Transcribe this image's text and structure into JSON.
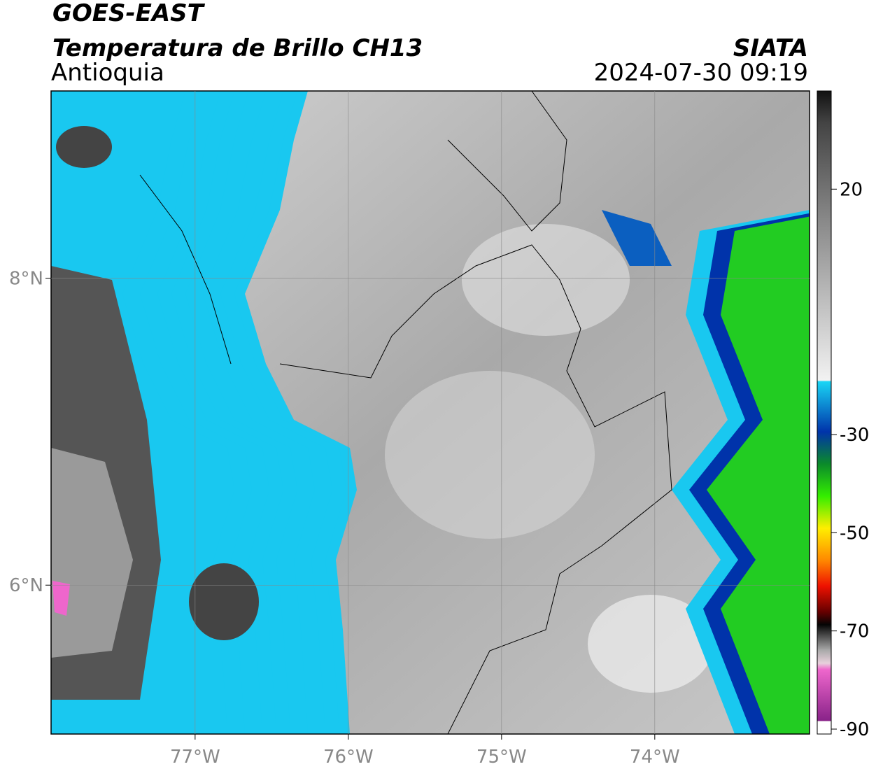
{
  "header": {
    "title": "GOES-EAST",
    "subtitle": "Temperatura de Brillo CH13",
    "region": "Antioquia",
    "source": "SIATA",
    "datetime": "2024-07-30 09:19"
  },
  "map": {
    "xlim": [
      -77.94,
      -72.99
    ],
    "ylim": [
      5.03,
      9.22
    ],
    "xticks": [
      {
        "value": -77,
        "label": "77°W"
      },
      {
        "value": -76,
        "label": "76°W"
      },
      {
        "value": -75,
        "label": "75°W"
      },
      {
        "value": -74,
        "label": "74°W"
      }
    ],
    "yticks": [
      {
        "value": 8,
        "label": "8°N"
      },
      {
        "value": 6,
        "label": "6°N"
      }
    ]
  },
  "colorbar": {
    "ylim": [
      -91,
      40
    ],
    "ticks": [
      20,
      -30,
      -50,
      -70,
      -90
    ]
  }
}
